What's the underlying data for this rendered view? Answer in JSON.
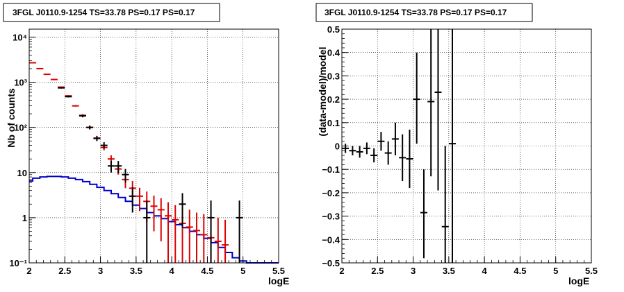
{
  "chart_data": [
    {
      "type": "line",
      "title": "3FGL J0110.9-1254 TS=33.78 PS=0.17 PS=0.17",
      "xlabel": "logE",
      "ylabel": "Nb of counts",
      "xlim": [
        2,
        5.5
      ],
      "ylim": [
        0.1,
        15000
      ],
      "y_scale": "log",
      "grid": true,
      "x_ticks": [
        2,
        2.5,
        3,
        3.5,
        4,
        4.5,
        5,
        5.5
      ],
      "x_tick_labels": [
        "2",
        "2.5",
        "3",
        "3.5",
        "4",
        "4.5",
        "5",
        "5.5"
      ],
      "y_ticks": [
        0.1,
        1,
        10,
        100,
        1000,
        10000
      ],
      "y_tick_labels": [
        "10⁻¹",
        "1",
        "10",
        "10²",
        "10³",
        "10⁴"
      ],
      "colors": {
        "data": "#000000",
        "model": "#dd0000",
        "component": "#0000cc"
      },
      "series": [
        {
          "style": "points",
          "color": "#000000",
          "points": [
            {
              "x": 2.45,
              "y": 750,
              "lo": 725,
              "hi": 775
            },
            {
              "x": 2.55,
              "y": 480,
              "lo": 460,
              "hi": 500
            },
            {
              "x": 2.75,
              "y": 180,
              "lo": 167,
              "hi": 193
            },
            {
              "x": 2.85,
              "y": 100,
              "lo": 90,
              "hi": 110
            },
            {
              "x": 2.95,
              "y": 57,
              "lo": 50,
              "hi": 65
            },
            {
              "x": 3.05,
              "y": 40,
              "lo": 34,
              "hi": 47
            },
            {
              "x": 3.15,
              "y": 14,
              "lo": 10,
              "hi": 18
            },
            {
              "x": 3.25,
              "y": 14,
              "lo": 10,
              "hi": 18
            },
            {
              "x": 3.35,
              "y": 9,
              "lo": 6,
              "hi": 12
            },
            {
              "x": 3.45,
              "y": 3,
              "lo": 1.3,
              "hi": 4.7
            },
            {
              "x": 3.65,
              "y": 1,
              "lo": 0.1,
              "hi": 2.4
            },
            {
              "x": 4.15,
              "y": 2,
              "lo": 0.6,
              "hi": 3.5
            },
            {
              "x": 4.55,
              "y": 1,
              "lo": 0.1,
              "hi": 2.4
            },
            {
              "x": 4.95,
              "y": 1,
              "lo": 0.1,
              "hi": 2.4
            }
          ]
        },
        {
          "style": "points",
          "color": "#dd0000",
          "points": [
            {
              "x": 2.05,
              "y": 2700,
              "lo": 2650,
              "hi": 2750
            },
            {
              "x": 2.15,
              "y": 2000,
              "lo": 1960,
              "hi": 2040
            },
            {
              "x": 2.25,
              "y": 1500,
              "lo": 1460,
              "hi": 1540
            },
            {
              "x": 2.35,
              "y": 1150,
              "lo": 1120,
              "hi": 1180
            },
            {
              "x": 2.45,
              "y": 780,
              "lo": 760,
              "hi": 800
            },
            {
              "x": 2.55,
              "y": 500,
              "lo": 485,
              "hi": 515
            },
            {
              "x": 2.65,
              "y": 300,
              "lo": 288,
              "hi": 312
            },
            {
              "x": 2.75,
              "y": 185,
              "lo": 175,
              "hi": 195
            },
            {
              "x": 2.85,
              "y": 100,
              "lo": 93,
              "hi": 107
            },
            {
              "x": 2.95,
              "y": 58,
              "lo": 52,
              "hi": 64
            },
            {
              "x": 3.05,
              "y": 36,
              "lo": 31,
              "hi": 41
            },
            {
              "x": 3.15,
              "y": 20,
              "lo": 16,
              "hi": 24
            },
            {
              "x": 3.25,
              "y": 12,
              "lo": 9,
              "hi": 15
            },
            {
              "x": 3.35,
              "y": 7,
              "lo": 4.5,
              "hi": 9.5
            },
            {
              "x": 3.45,
              "y": 4.5,
              "lo": 2.5,
              "hi": 6.5
            },
            {
              "x": 3.55,
              "y": 3,
              "lo": 1.4,
              "hi": 4.6
            },
            {
              "x": 3.65,
              "y": 2.3,
              "lo": 0.8,
              "hi": 3.8
            },
            {
              "x": 3.75,
              "y": 1.8,
              "lo": 0.5,
              "hi": 3.1
            },
            {
              "x": 3.85,
              "y": 1.5,
              "lo": 0.3,
              "hi": 2.7
            },
            {
              "x": 3.95,
              "y": 1.1,
              "lo": 0.1,
              "hi": 2.2
            },
            {
              "x": 4.05,
              "y": 0.9,
              "lo": 0.1,
              "hi": 1.9
            },
            {
              "x": 4.15,
              "y": 0.75,
              "lo": 0.1,
              "hi": 1.7
            },
            {
              "x": 4.25,
              "y": 0.62,
              "lo": 0.1,
              "hi": 1.5
            },
            {
              "x": 4.35,
              "y": 0.52,
              "lo": 0.1,
              "hi": 1.3
            },
            {
              "x": 4.45,
              "y": 0.42,
              "lo": 0.1,
              "hi": 1.2
            },
            {
              "x": 4.55,
              "y": 0.36,
              "lo": 0.1,
              "hi": 1.1
            },
            {
              "x": 4.65,
              "y": 0.3,
              "lo": 0.1,
              "hi": 1.0
            },
            {
              "x": 4.75,
              "y": 0.25,
              "lo": 0.1,
              "hi": 0.9
            }
          ]
        },
        {
          "style": "step",
          "color": "#0000cc",
          "bin_width": 0.1,
          "bin_lo": [
            1.95,
            2.05,
            2.15,
            2.25,
            2.35,
            2.45,
            2.55,
            2.65,
            2.75,
            2.85,
            2.95,
            3.05,
            3.15,
            3.25,
            3.35,
            3.45,
            3.55,
            3.65,
            3.75,
            3.85,
            3.95,
            4.05,
            4.15,
            4.25,
            4.35,
            4.45,
            4.55,
            4.65,
            4.75,
            4.85,
            4.95,
            5.05,
            5.15,
            5.25,
            5.35,
            5.45
          ],
          "values": [
            6.5,
            7.5,
            8.0,
            8.2,
            8.2,
            8.0,
            7.5,
            7.0,
            6.3,
            5.5,
            4.7,
            4.0,
            3.4,
            2.8,
            2.3,
            1.9,
            1.6,
            1.3,
            1.1,
            0.95,
            0.82,
            0.7,
            0.6,
            0.5,
            0.42,
            0.35,
            0.28,
            0.22,
            0.17,
            0.13,
            0.11,
            0.1,
            0.1,
            0.1,
            0.1,
            0.1
          ]
        }
      ]
    },
    {
      "type": "scatter",
      "title": "3FGL J0110.9-1254 TS=33.78 PS=0.17 PS=0.17",
      "xlabel": "logE",
      "ylabel": "(data-model)/model",
      "xlim": [
        2,
        5.5
      ],
      "ylim": [
        -0.5,
        0.5
      ],
      "grid": true,
      "x_ticks": [
        2,
        2.5,
        3,
        3.5,
        4,
        4.5,
        5,
        5.5
      ],
      "x_tick_labels": [
        "2",
        "2.5",
        "3",
        "3.5",
        "4",
        "4.5",
        "5",
        "5.5"
      ],
      "y_ticks": [
        -0.5,
        -0.4,
        -0.3,
        -0.2,
        -0.1,
        0,
        0.1,
        0.2,
        0.3,
        0.4,
        0.5
      ],
      "y_tick_labels": [
        "−0.5",
        "−0.4",
        "−0.3",
        "−0.2",
        "−0.1",
        "0",
        "0.1",
        "0.2",
        "0.3",
        "0.4",
        "0.5"
      ],
      "series": [
        {
          "style": "points",
          "color": "#000000",
          "points": [
            {
              "x": 2.05,
              "y": -0.01,
              "lo": -0.03,
              "hi": 0.01
            },
            {
              "x": 2.15,
              "y": -0.02,
              "lo": -0.04,
              "hi": 0.0
            },
            {
              "x": 2.25,
              "y": -0.025,
              "lo": -0.05,
              "hi": 0.0
            },
            {
              "x": 2.35,
              "y": -0.01,
              "lo": -0.035,
              "hi": 0.015
            },
            {
              "x": 2.45,
              "y": -0.04,
              "lo": -0.07,
              "hi": -0.01
            },
            {
              "x": 2.55,
              "y": 0.02,
              "lo": -0.02,
              "hi": 0.06
            },
            {
              "x": 2.65,
              "y": -0.03,
              "lo": -0.08,
              "hi": 0.02
            },
            {
              "x": 2.75,
              "y": 0.03,
              "lo": -0.04,
              "hi": 0.1
            },
            {
              "x": 2.85,
              "y": -0.05,
              "lo": -0.15,
              "hi": 0.05
            },
            {
              "x": 2.95,
              "y": -0.055,
              "lo": -0.18,
              "hi": 0.07
            },
            {
              "x": 3.05,
              "y": 0.2,
              "lo": 0.01,
              "hi": 0.4
            },
            {
              "x": 3.15,
              "y": -0.285,
              "lo": -0.48,
              "hi": -0.1
            },
            {
              "x": 3.25,
              "y": 0.19,
              "lo": -0.13,
              "hi": 0.5
            },
            {
              "x": 3.35,
              "y": 0.23,
              "lo": -0.19,
              "hi": 0.5
            },
            {
              "x": 3.45,
              "y": -0.345,
              "lo": -0.5,
              "hi": 0.0
            },
            {
              "x": 3.55,
              "y": 0.01,
              "lo": -0.5,
              "hi": 0.5
            }
          ]
        }
      ]
    }
  ]
}
